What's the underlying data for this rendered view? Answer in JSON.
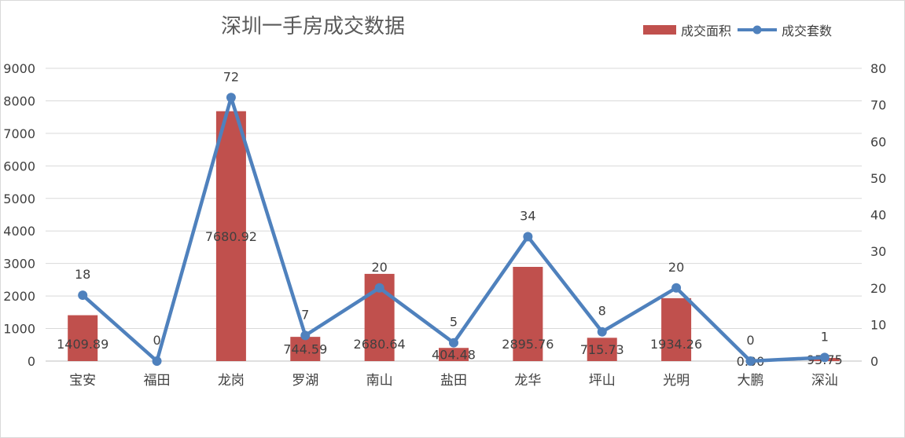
{
  "chart_data": {
    "type": "bar",
    "title": "深圳一手房成交数据",
    "categories": [
      "宝安",
      "福田",
      "龙岗",
      "罗湖",
      "南山",
      "盐田",
      "龙华",
      "坪山",
      "光明",
      "大鹏",
      "深汕"
    ],
    "series": [
      {
        "name": "成交面积",
        "type": "bar",
        "axis": "left",
        "color": "#c0504d",
        "values": [
          1409.89,
          0,
          7680.92,
          744.59,
          2680.64,
          404.48,
          2895.76,
          715.73,
          1934.26,
          0,
          95.75
        ],
        "labels": [
          "1409.89",
          "0",
          "7680.92",
          "744.59",
          "2680.64",
          "404.48",
          "2895.76",
          "715.73",
          "1934.26",
          "0.00",
          "95.75"
        ]
      },
      {
        "name": "成交套数",
        "type": "line",
        "axis": "right",
        "color": "#4f81bd",
        "values": [
          18,
          0,
          72,
          7,
          20,
          5,
          34,
          8,
          20,
          0,
          1
        ],
        "labels": [
          "18",
          "0",
          "72",
          "7",
          "20",
          "5",
          "34",
          "8",
          "20",
          "0",
          "1"
        ]
      }
    ],
    "y_left": {
      "min": 0,
      "max": 9000,
      "step": 1000,
      "ticks": [
        "0",
        "1000",
        "2000",
        "3000",
        "4000",
        "5000",
        "6000",
        "7000",
        "8000",
        "9000"
      ]
    },
    "y_right": {
      "min": 0,
      "max": 80,
      "step": 10,
      "ticks": [
        "0",
        "10",
        "20",
        "30",
        "40",
        "50",
        "60",
        "70",
        "80"
      ]
    },
    "grid": true,
    "legend_position": "top-right",
    "gridline_color": "#d9d9d9"
  }
}
